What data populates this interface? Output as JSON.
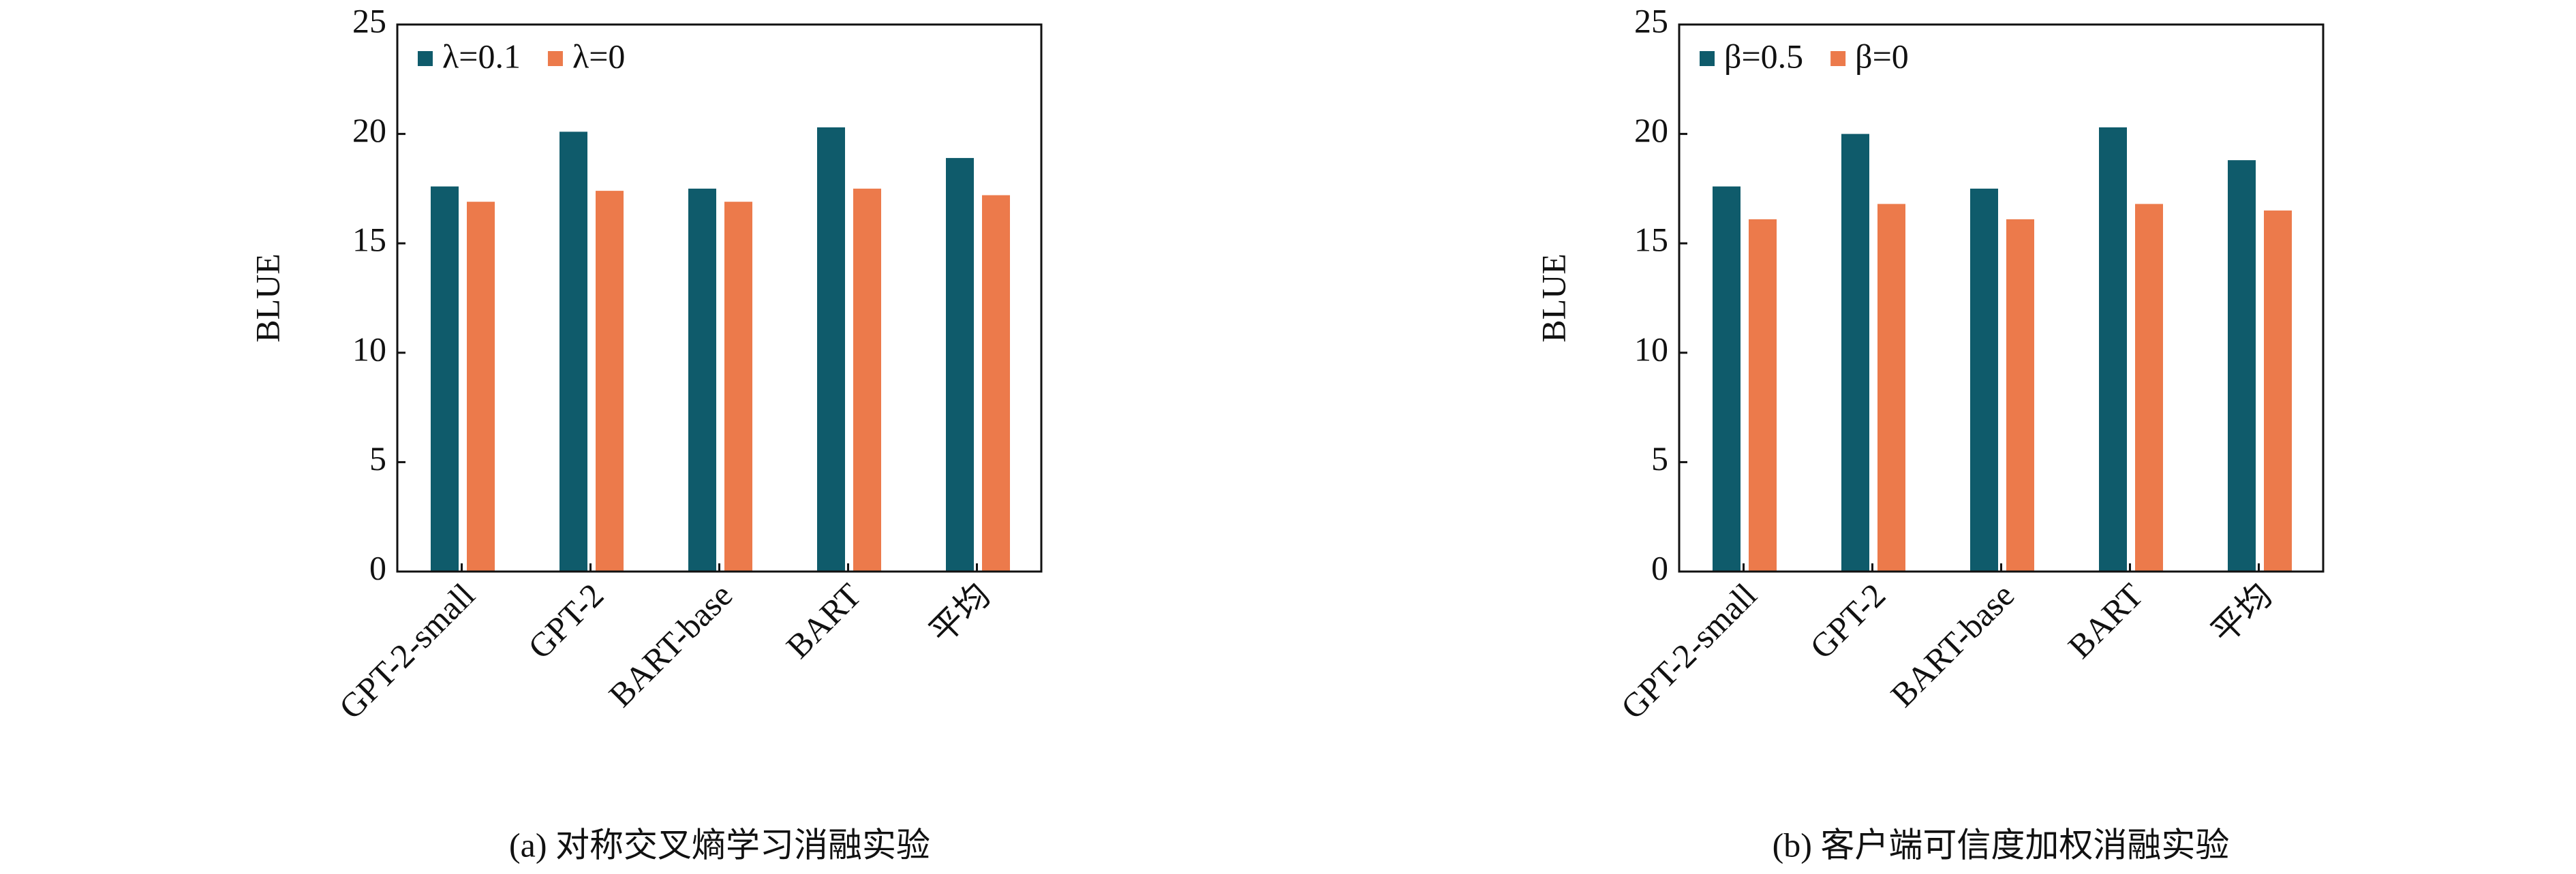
{
  "chart_data": [
    {
      "type": "bar",
      "title": "(a) 对称交叉熵学习消融实验",
      "y_label": "BLUE",
      "categories": [
        "GPT-2-small",
        "GPT-2",
        "BART-base",
        "BART",
        "平均"
      ],
      "series": [
        {
          "name": "λ=0.1",
          "color": "#0f5b6b",
          "values": [
            17.6,
            20.1,
            17.5,
            20.3,
            18.9
          ]
        },
        {
          "name": "λ=0",
          "color": "#ec7a4b",
          "values": [
            16.9,
            17.4,
            16.9,
            17.5,
            17.2
          ]
        }
      ],
      "ylim": [
        0,
        25
      ],
      "yticks": [
        0,
        5,
        10,
        15,
        20,
        25
      ],
      "legend": "upper left",
      "grid": false
    },
    {
      "type": "bar",
      "title": "(b) 客户端可信度加权消融实验",
      "y_label": "BLUE",
      "categories": [
        "GPT-2-small",
        "GPT-2",
        "BART-base",
        "BART",
        "平均"
      ],
      "series": [
        {
          "name": "β=0.5",
          "color": "#0f5b6b",
          "values": [
            17.6,
            20.0,
            17.5,
            20.3,
            18.8
          ]
        },
        {
          "name": "β=0",
          "color": "#ec7a4b",
          "values": [
            16.1,
            16.8,
            16.1,
            16.8,
            16.5
          ]
        }
      ],
      "ylim": [
        0,
        25
      ],
      "yticks": [
        0,
        5,
        10,
        15,
        20,
        25
      ],
      "legend": "upper left",
      "grid": false
    }
  ]
}
